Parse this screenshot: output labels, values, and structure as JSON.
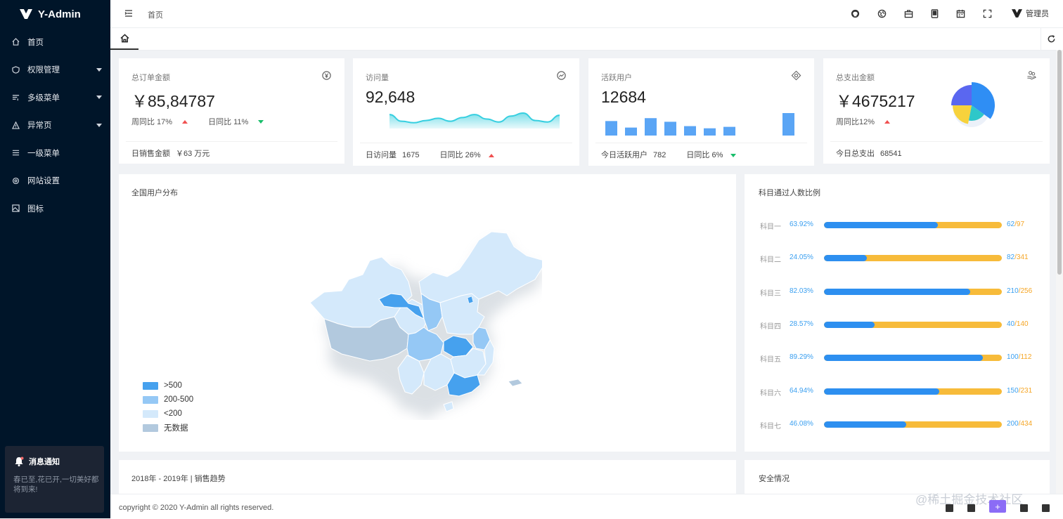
{
  "app": {
    "title": "Y-Admin"
  },
  "sidebar": {
    "items": [
      {
        "label": "首页",
        "icon": "home-icon",
        "has_children": false
      },
      {
        "label": "权限管理",
        "icon": "shield-icon",
        "has_children": true
      },
      {
        "label": "多级菜单",
        "icon": "list-filter-icon",
        "has_children": true
      },
      {
        "label": "异常页",
        "icon": "warning-icon",
        "has_children": true
      },
      {
        "label": "一级菜单",
        "icon": "menu-icon",
        "has_children": false
      },
      {
        "label": "网站设置",
        "icon": "settings-icon",
        "has_children": false
      },
      {
        "label": "图标",
        "icon": "image-icon",
        "has_children": false
      }
    ]
  },
  "notice": {
    "title": "消息通知",
    "text": "春已至,花已开,一切美好都将到来!"
  },
  "header": {
    "breadcrumb": "首页",
    "icons": [
      "github-icon",
      "globe-icon",
      "briefcase-icon",
      "tablet-icon",
      "calendar-icon",
      "fullscreen-icon"
    ],
    "user": "管理员"
  },
  "stats": [
    {
      "title": "总订单金额",
      "value": "￥85,84787",
      "icon": "currency-circle-icon",
      "week_label": "周同比 17%",
      "day_label": "日同比 11%",
      "footer_label": "日销售金额",
      "footer_value": "￥63 万元"
    },
    {
      "title": "访问量",
      "value": "92,648",
      "icon": "trend-circle-icon",
      "footer_label": "日访问量",
      "footer_value": "1675",
      "footer_compare": "日同比 26%",
      "sparkline": [
        30,
        12,
        8,
        14,
        20,
        12,
        22,
        30,
        18,
        10,
        26,
        34,
        14,
        10,
        28
      ]
    },
    {
      "title": "活跃用户",
      "value": "12684",
      "icon": "compass-icon",
      "footer_label": "今日活跃用户",
      "footer_value": "782",
      "footer_compare": "日同比 6%",
      "bars": [
        20,
        11,
        24,
        19,
        13,
        10,
        12,
        0,
        0,
        31,
        10
      ]
    },
    {
      "title": "总支出金额",
      "value": "￥4675217",
      "icon": "coins-hand-icon",
      "week_label": "周同比12%",
      "footer_label": "今日总支出",
      "footer_value": "68541",
      "pie": [
        {
          "value": 35,
          "color": "#2f8ef4"
        },
        {
          "value": 18,
          "color": "#2ec7c9"
        },
        {
          "value": 22,
          "color": "#f7d23c"
        },
        {
          "value": 25,
          "color": "#5a67f0"
        }
      ]
    }
  ],
  "map": {
    "title": "全国用户分布",
    "legend": [
      {
        "label": ">500",
        "color": "#46a1ee"
      },
      {
        "label": "200-500",
        "color": "#95c8f5"
      },
      {
        "label": "<200",
        "color": "#d4e9fb"
      },
      {
        "label": "无数据",
        "color": "#b2c9de"
      }
    ]
  },
  "subjects": {
    "title": "科目通过人数比例",
    "items": [
      {
        "name": "科目一",
        "pct": "63.92%",
        "fraction": 0.6392,
        "passed": "62",
        "total": "97"
      },
      {
        "name": "科目二",
        "pct": "24.05%",
        "fraction": 0.2405,
        "passed": "82",
        "total": "341"
      },
      {
        "name": "科目三",
        "pct": "82.03%",
        "fraction": 0.8203,
        "passed": "210",
        "total": "256"
      },
      {
        "name": "科目四",
        "pct": "28.57%",
        "fraction": 0.2857,
        "passed": "40",
        "total": "140"
      },
      {
        "name": "科目五",
        "pct": "89.29%",
        "fraction": 0.8929,
        "passed": "100",
        "total": "112"
      },
      {
        "name": "科目六",
        "pct": "64.94%",
        "fraction": 0.6494,
        "passed": "150",
        "total": "231"
      },
      {
        "name": "科目七",
        "pct": "46.08%",
        "fraction": 0.4608,
        "passed": "200",
        "total": "434"
      }
    ]
  },
  "sales": {
    "title": "2018年 - 2019年 | 销售趋势"
  },
  "security": {
    "title": "安全情况"
  },
  "footer": {
    "copyright": "copyright © 2020 Y-Admin all rights reserved.",
    "watermark": "@稀土掘金技术社区"
  }
}
